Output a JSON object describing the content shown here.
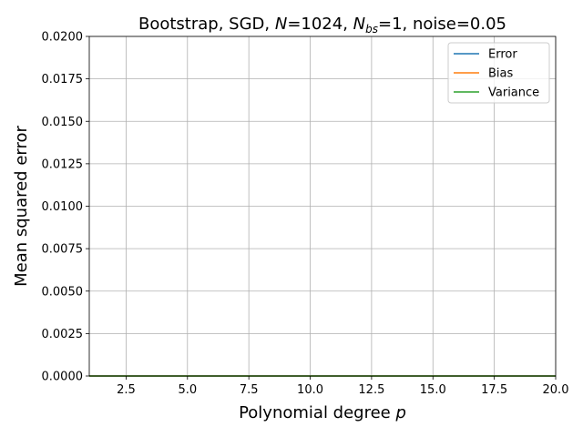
{
  "chart_data": {
    "type": "line",
    "title": {
      "prefix": "Bootstrap, SGD, ",
      "n_symbol": "N",
      "n_value": "=1024, ",
      "nbs_symbol": "N",
      "nbs_subscript": "bs",
      "nbs_value": "=1, noise=0.05"
    },
    "xlabel": {
      "text": "Polynomial degree ",
      "symbol": "p"
    },
    "ylabel": "Mean squared error",
    "xlim": [
      1,
      20
    ],
    "ylim": [
      0,
      0.02
    ],
    "xticks": [
      2.5,
      5.0,
      7.5,
      10.0,
      12.5,
      15.0,
      17.5,
      20.0
    ],
    "xtick_labels": [
      "2.5",
      "5.0",
      "7.5",
      "10.0",
      "12.5",
      "15.0",
      "17.5",
      "20.0"
    ],
    "yticks": [
      0,
      0.0025,
      0.005,
      0.0075,
      0.01,
      0.0125,
      0.015,
      0.0175,
      0.02
    ],
    "ytick_labels": [
      "0.0000",
      "0.0025",
      "0.0050",
      "0.0075",
      "0.0100",
      "0.0125",
      "0.0150",
      "0.0175",
      "0.0200"
    ],
    "grid": true,
    "legend_position": "top-right",
    "x": [
      1,
      2,
      3,
      4,
      5,
      6,
      7,
      8,
      9,
      10,
      11,
      12,
      13,
      14,
      15,
      16,
      17,
      18,
      19,
      20
    ],
    "series": [
      {
        "name": "Error",
        "color": "#1f77b4",
        "values": [
          0,
          0,
          0,
          0,
          0,
          0,
          0,
          0,
          0,
          0,
          0,
          0,
          0,
          0,
          0,
          0,
          0,
          0,
          0,
          0
        ]
      },
      {
        "name": "Bias",
        "color": "#ff7f0e",
        "values": [
          0,
          0,
          0,
          0,
          0,
          0,
          0,
          0,
          0,
          0,
          0,
          0,
          0,
          0,
          0,
          0,
          0,
          0,
          0,
          0
        ]
      },
      {
        "name": "Variance",
        "color": "#2ca02c",
        "values": [
          0,
          0,
          0,
          0,
          0,
          0,
          0,
          0,
          0,
          0,
          0,
          0,
          0,
          0,
          0,
          0,
          0,
          0,
          0,
          0
        ]
      }
    ]
  }
}
